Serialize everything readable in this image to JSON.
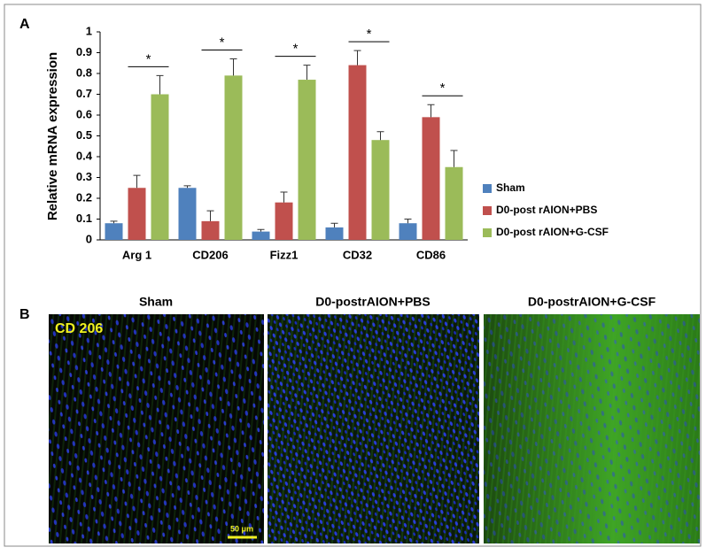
{
  "chart_data": {
    "type": "bar",
    "ylabel": "Relative mRNA expression",
    "categories": [
      "Arg 1",
      "CD206",
      "Fizz1",
      "CD32",
      "CD86"
    ],
    "series": [
      {
        "name": "Sham",
        "color": "#4f81bd",
        "values": [
          0.08,
          0.25,
          0.04,
          0.06,
          0.08
        ],
        "errors": [
          0.01,
          0.01,
          0.01,
          0.02,
          0.02
        ]
      },
      {
        "name": "D0-post rAION+PBS",
        "color": "#c0504d",
        "values": [
          0.25,
          0.09,
          0.18,
          0.84,
          0.59
        ],
        "errors": [
          0.06,
          0.05,
          0.05,
          0.07,
          0.06
        ]
      },
      {
        "name": "D0-post rAION+G-CSF",
        "color": "#9bbb59",
        "values": [
          0.7,
          0.79,
          0.77,
          0.48,
          0.35
        ],
        "errors": [
          0.09,
          0.08,
          0.07,
          0.04,
          0.08
        ]
      }
    ],
    "significance": [
      "*",
      "*",
      "*",
      "*",
      "*"
    ],
    "ylim": [
      0,
      1
    ],
    "yticks": [
      0,
      0.1,
      0.2,
      0.3,
      0.4,
      0.5,
      0.6,
      0.7,
      0.8,
      0.9,
      1
    ],
    "legend": "right"
  },
  "panel_labels": [
    "A",
    "B"
  ],
  "images": {
    "titles": [
      "Sham",
      "D0-postrAION+PBS",
      "D0-postrAION+G-CSF"
    ],
    "marker": "CD 206",
    "scale_bar": "50 μm"
  }
}
